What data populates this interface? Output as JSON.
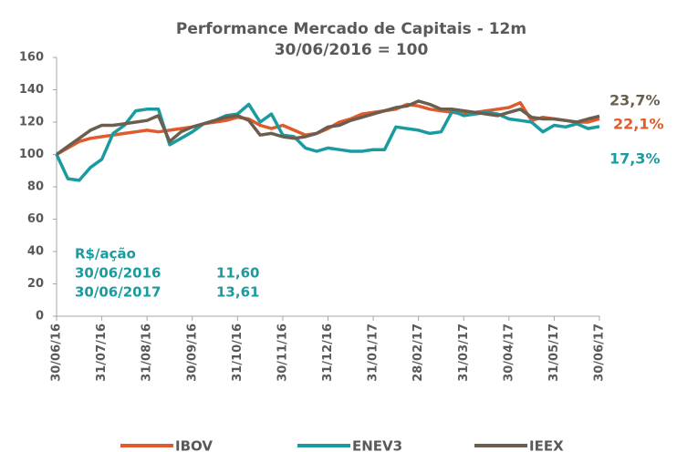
{
  "chart_data": {
    "type": "line",
    "title": [
      "Performance Mercado de Capitais - 12m",
      "30/06/2016 = 100"
    ],
    "categories": [
      "30/06/16",
      null,
      null,
      null,
      "31/07/16",
      null,
      null,
      null,
      "31/08/16",
      null,
      null,
      null,
      "30/09/16",
      null,
      null,
      null,
      "31/10/16",
      null,
      null,
      null,
      "30/11/16",
      null,
      null,
      null,
      "31/12/16",
      null,
      null,
      null,
      "31/01/17",
      null,
      null,
      null,
      "28/02/17",
      null,
      null,
      null,
      "31/03/17",
      null,
      null,
      null,
      "30/04/17",
      null,
      null,
      null,
      "31/05/17",
      null,
      null,
      null,
      "30/06/17"
    ],
    "series": [
      {
        "name": "IBOV",
        "color": "#e05a2b",
        "values": [
          100,
          104,
          108,
          110,
          111,
          112,
          113,
          114,
          115,
          114,
          115,
          116,
          117,
          119,
          120,
          121,
          123,
          122,
          118,
          116,
          118,
          115,
          112,
          113,
          116,
          120,
          122,
          125,
          126,
          127,
          128,
          131,
          130,
          128,
          127,
          126,
          125,
          126,
          127,
          128,
          129,
          132,
          121,
          123,
          122,
          121,
          120,
          120,
          122.1
        ]
      },
      {
        "name": "ENEV3",
        "color": "#1a9ba0",
        "values": [
          100,
          85,
          84,
          92,
          97,
          113,
          118,
          127,
          128,
          128,
          106,
          110,
          114,
          119,
          121,
          124,
          125,
          131,
          120,
          125,
          112,
          111,
          104,
          102,
          104,
          103,
          102,
          102,
          103,
          103,
          117,
          116,
          115,
          113,
          114,
          127,
          124,
          125,
          126,
          125,
          122,
          121,
          120,
          114,
          118,
          117,
          119,
          116,
          117.3
        ]
      },
      {
        "name": "IEEX",
        "color": "#6b5e4e",
        "values": [
          100,
          105,
          110,
          115,
          118,
          118,
          119,
          120,
          121,
          124,
          108,
          114,
          117,
          119,
          121,
          123,
          124,
          121,
          112,
          113,
          111,
          110,
          111,
          113,
          117,
          118,
          121,
          123,
          125,
          127,
          129,
          130,
          133,
          131,
          128,
          128,
          127,
          126,
          125,
          124,
          126,
          128,
          123,
          122,
          122,
          121,
          120,
          122,
          123.7
        ]
      }
    ],
    "annotations": [
      "23,7%",
      "22,1%",
      "17,3%"
    ],
    "note": {
      "title": "R$/ação",
      "rows": [
        [
          "30/06/2016",
          "11,60"
        ],
        [
          "30/06/2017",
          "13,61"
        ]
      ]
    },
    "ylim": [
      0,
      160
    ],
    "yticks": [
      0,
      20,
      40,
      60,
      80,
      100,
      120,
      140,
      160
    ],
    "grid": false,
    "legend": "bottom"
  }
}
